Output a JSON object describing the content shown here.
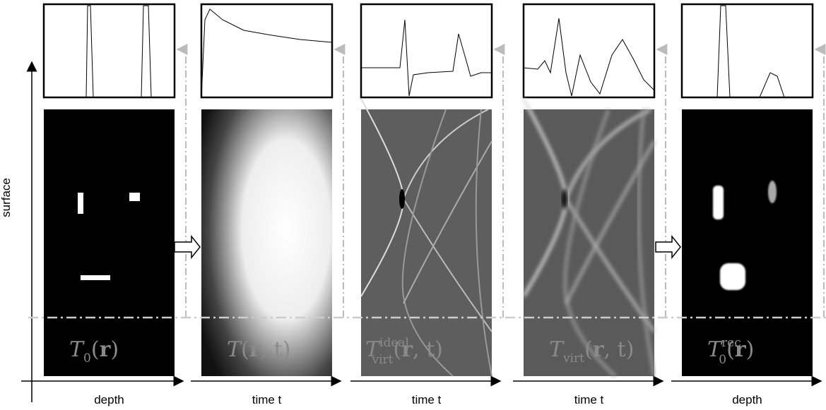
{
  "axis_label": "surface",
  "panels": [
    {
      "x_label": "depth",
      "label": {
        "base": "T",
        "sub": "0",
        "open": "(",
        "var": "r",
        "close": ")"
      }
    },
    {
      "x_label": "time t",
      "label": {
        "base": "T",
        "open": "(",
        "var": "r",
        "rest": ", t",
        "close": ")"
      }
    },
    {
      "x_label": "time t",
      "label": {
        "base": "T",
        "sub": "virt",
        "sup": "ideal",
        "open": "(",
        "var": "r",
        "rest": ", t",
        "close": ")"
      }
    },
    {
      "x_label": "time t",
      "label": {
        "base": "T",
        "sub": "virt",
        "open": "(",
        "var": "r",
        "rest": ", t",
        "close": ")"
      }
    },
    {
      "x_label": "depth",
      "label": {
        "base": "T",
        "sub": "0",
        "sup": "rec",
        "open": "(",
        "var": "r",
        "close": ")"
      }
    }
  ]
}
